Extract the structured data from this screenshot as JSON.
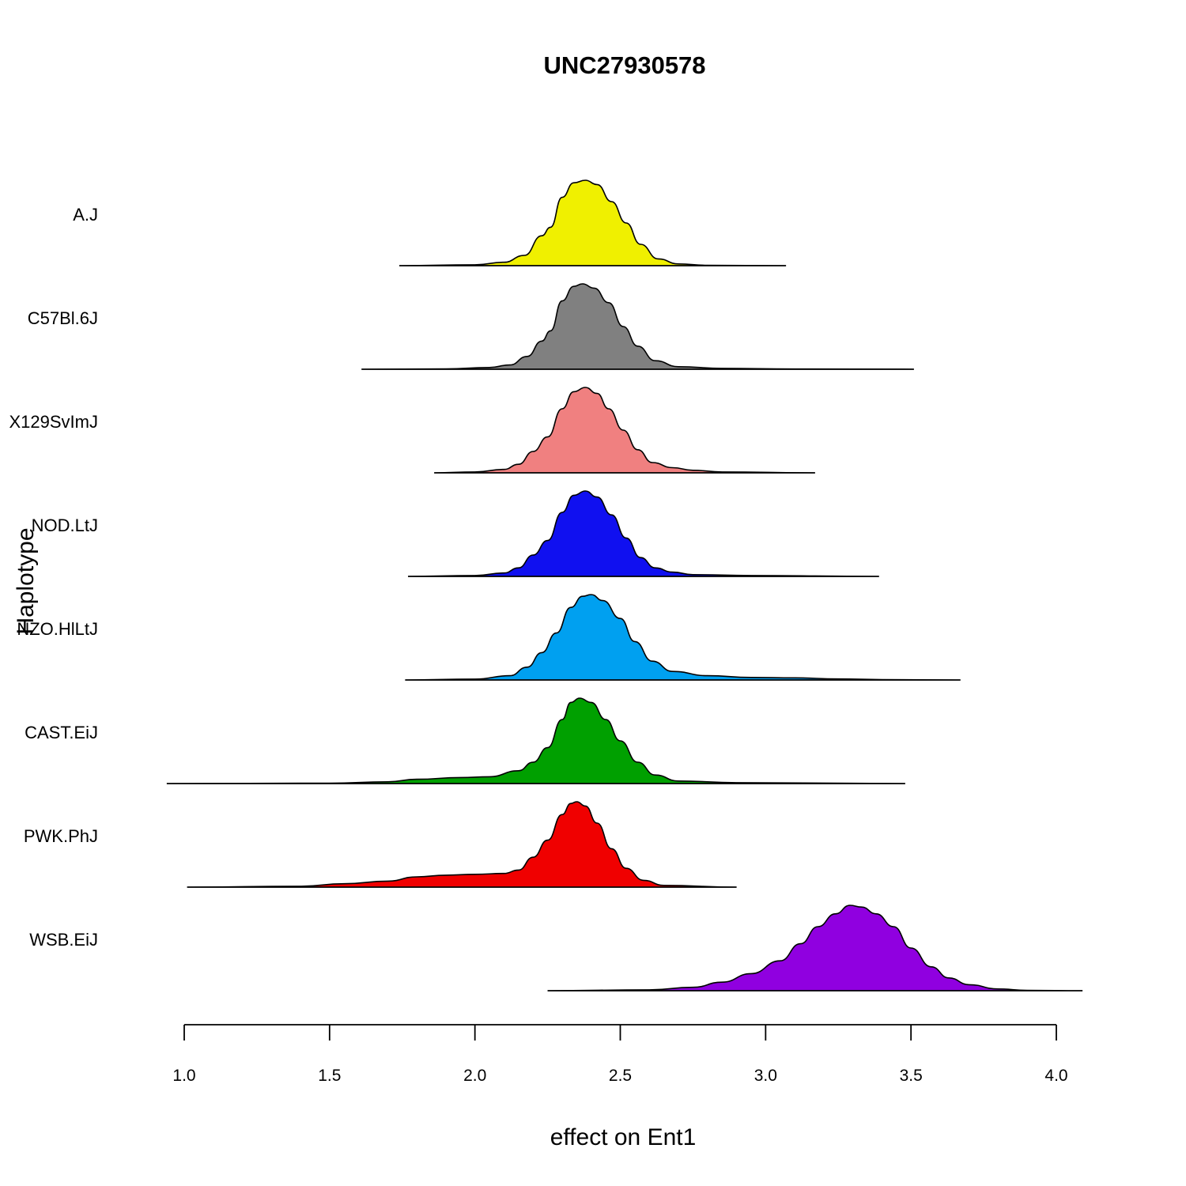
{
  "chart_data": {
    "type": "area",
    "title": "UNC27930578",
    "xlabel": "effect on Ent1",
    "ylabel": "Haplotype",
    "xlim": [
      1.0,
      4.0
    ],
    "xticks": [
      "1.0",
      "1.5",
      "2.0",
      "2.5",
      "3.0",
      "3.5",
      "4.0"
    ],
    "grid": false,
    "legend": "none",
    "categories": [
      "A.J",
      "C57Bl.6J",
      "X129SvImJ",
      "NOD.LtJ",
      "NZO.HlLtJ",
      "CAST.EiJ",
      "PWK.PhJ",
      "WSB.EiJ"
    ],
    "series": [
      {
        "name": "A.J",
        "color": "#f0f000",
        "range": [
          1.74,
          3.07
        ],
        "density": [
          [
            1.74,
            0
          ],
          [
            2.0,
            0.01
          ],
          [
            2.1,
            0.04
          ],
          [
            2.17,
            0.12
          ],
          [
            2.23,
            0.35
          ],
          [
            2.26,
            0.45
          ],
          [
            2.3,
            0.8
          ],
          [
            2.34,
            0.97
          ],
          [
            2.38,
            1.0
          ],
          [
            2.42,
            0.95
          ],
          [
            2.47,
            0.75
          ],
          [
            2.52,
            0.5
          ],
          [
            2.57,
            0.25
          ],
          [
            2.63,
            0.08
          ],
          [
            2.7,
            0.02
          ],
          [
            2.8,
            0.005
          ],
          [
            3.07,
            0
          ]
        ]
      },
      {
        "name": "C57Bl.6J",
        "color": "#808080",
        "range": [
          1.61,
          3.51
        ],
        "density": [
          [
            1.61,
            0
          ],
          [
            1.9,
            0.005
          ],
          [
            2.05,
            0.02
          ],
          [
            2.12,
            0.05
          ],
          [
            2.18,
            0.15
          ],
          [
            2.23,
            0.33
          ],
          [
            2.26,
            0.45
          ],
          [
            2.3,
            0.8
          ],
          [
            2.34,
            0.97
          ],
          [
            2.37,
            1.0
          ],
          [
            2.41,
            0.95
          ],
          [
            2.46,
            0.78
          ],
          [
            2.51,
            0.5
          ],
          [
            2.56,
            0.27
          ],
          [
            2.62,
            0.1
          ],
          [
            2.7,
            0.03
          ],
          [
            2.85,
            0.01
          ],
          [
            3.1,
            0.003
          ],
          [
            3.51,
            0
          ]
        ]
      },
      {
        "name": "X129SvImJ",
        "color": "#f08080",
        "range": [
          1.86,
          3.17
        ],
        "density": [
          [
            1.86,
            0
          ],
          [
            2.0,
            0.01
          ],
          [
            2.1,
            0.04
          ],
          [
            2.15,
            0.1
          ],
          [
            2.2,
            0.25
          ],
          [
            2.25,
            0.42
          ],
          [
            2.3,
            0.75
          ],
          [
            2.34,
            0.95
          ],
          [
            2.38,
            1.0
          ],
          [
            2.42,
            0.93
          ],
          [
            2.46,
            0.75
          ],
          [
            2.51,
            0.5
          ],
          [
            2.56,
            0.27
          ],
          [
            2.61,
            0.12
          ],
          [
            2.68,
            0.06
          ],
          [
            2.75,
            0.03
          ],
          [
            2.85,
            0.01
          ],
          [
            3.17,
            0
          ]
        ]
      },
      {
        "name": "NOD.LtJ",
        "color": "#1010f0",
        "range": [
          1.77,
          3.39
        ],
        "density": [
          [
            1.77,
            0
          ],
          [
            2.0,
            0.01
          ],
          [
            2.1,
            0.04
          ],
          [
            2.15,
            0.1
          ],
          [
            2.2,
            0.25
          ],
          [
            2.25,
            0.42
          ],
          [
            2.3,
            0.75
          ],
          [
            2.34,
            0.95
          ],
          [
            2.38,
            1.0
          ],
          [
            2.42,
            0.93
          ],
          [
            2.47,
            0.72
          ],
          [
            2.52,
            0.45
          ],
          [
            2.57,
            0.22
          ],
          [
            2.62,
            0.1
          ],
          [
            2.68,
            0.05
          ],
          [
            2.75,
            0.02
          ],
          [
            2.95,
            0.01
          ],
          [
            3.39,
            0
          ]
        ]
      },
      {
        "name": "NZO.HlLtJ",
        "color": "#00a0f0",
        "range": [
          1.76,
          3.67
        ],
        "density": [
          [
            1.76,
            0
          ],
          [
            2.0,
            0.01
          ],
          [
            2.12,
            0.05
          ],
          [
            2.18,
            0.15
          ],
          [
            2.23,
            0.32
          ],
          [
            2.28,
            0.55
          ],
          [
            2.33,
            0.85
          ],
          [
            2.37,
            0.98
          ],
          [
            2.4,
            1.0
          ],
          [
            2.44,
            0.93
          ],
          [
            2.5,
            0.72
          ],
          [
            2.55,
            0.45
          ],
          [
            2.61,
            0.22
          ],
          [
            2.68,
            0.1
          ],
          [
            2.8,
            0.05
          ],
          [
            2.95,
            0.03
          ],
          [
            3.1,
            0.025
          ],
          [
            3.25,
            0.012
          ],
          [
            3.4,
            0.005
          ],
          [
            3.67,
            0
          ]
        ]
      },
      {
        "name": "CAST.EiJ",
        "color": "#00a000",
        "range": [
          0.94,
          3.48
        ],
        "density": [
          [
            0.94,
            0
          ],
          [
            1.5,
            0.005
          ],
          [
            1.7,
            0.02
          ],
          [
            1.8,
            0.05
          ],
          [
            1.95,
            0.07
          ],
          [
            2.05,
            0.08
          ],
          [
            2.15,
            0.15
          ],
          [
            2.2,
            0.25
          ],
          [
            2.25,
            0.42
          ],
          [
            2.3,
            0.75
          ],
          [
            2.33,
            0.95
          ],
          [
            2.36,
            1.0
          ],
          [
            2.4,
            0.95
          ],
          [
            2.45,
            0.75
          ],
          [
            2.5,
            0.5
          ],
          [
            2.56,
            0.25
          ],
          [
            2.62,
            0.1
          ],
          [
            2.7,
            0.03
          ],
          [
            2.9,
            0.01
          ],
          [
            3.48,
            0
          ]
        ]
      },
      {
        "name": "PWK.PhJ",
        "color": "#f00000",
        "range": [
          1.01,
          2.9
        ],
        "density": [
          [
            1.01,
            0
          ],
          [
            1.4,
            0.01
          ],
          [
            1.55,
            0.04
          ],
          [
            1.7,
            0.07
          ],
          [
            1.8,
            0.12
          ],
          [
            1.9,
            0.14
          ],
          [
            2.0,
            0.15
          ],
          [
            2.1,
            0.16
          ],
          [
            2.15,
            0.2
          ],
          [
            2.2,
            0.35
          ],
          [
            2.25,
            0.55
          ],
          [
            2.3,
            0.85
          ],
          [
            2.33,
            0.98
          ],
          [
            2.35,
            1.0
          ],
          [
            2.38,
            0.95
          ],
          [
            2.42,
            0.75
          ],
          [
            2.47,
            0.45
          ],
          [
            2.52,
            0.22
          ],
          [
            2.58,
            0.08
          ],
          [
            2.65,
            0.02
          ],
          [
            2.9,
            0
          ]
        ]
      },
      {
        "name": "WSB.EiJ",
        "color": "#9000e0",
        "range": [
          2.25,
          4.09
        ],
        "density": [
          [
            2.25,
            0
          ],
          [
            2.6,
            0.01
          ],
          [
            2.75,
            0.04
          ],
          [
            2.85,
            0.1
          ],
          [
            2.95,
            0.2
          ],
          [
            3.05,
            0.35
          ],
          [
            3.12,
            0.55
          ],
          [
            3.18,
            0.75
          ],
          [
            3.24,
            0.9
          ],
          [
            3.29,
            1.0
          ],
          [
            3.33,
            0.98
          ],
          [
            3.38,
            0.9
          ],
          [
            3.44,
            0.75
          ],
          [
            3.5,
            0.5
          ],
          [
            3.57,
            0.28
          ],
          [
            3.63,
            0.15
          ],
          [
            3.7,
            0.07
          ],
          [
            3.8,
            0.02
          ],
          [
            3.9,
            0.005
          ],
          [
            4.09,
            0
          ]
        ]
      }
    ]
  }
}
